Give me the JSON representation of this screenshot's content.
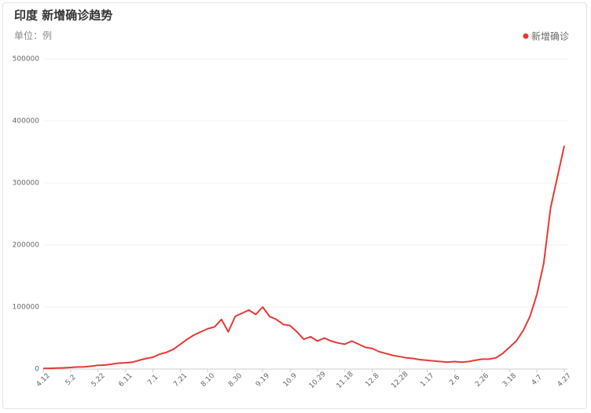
{
  "chart_data": {
    "type": "line",
    "title": "印度 新增确诊趋势",
    "subtitle": "单位：例",
    "categories": [
      "4.12",
      null,
      null,
      null,
      "5.2",
      null,
      null,
      null,
      "5.22",
      null,
      null,
      null,
      "6.11",
      null,
      null,
      null,
      "7.1",
      null,
      null,
      null,
      "7.21",
      null,
      null,
      null,
      "8.10",
      null,
      null,
      null,
      "8.30",
      null,
      null,
      null,
      "9.19",
      null,
      null,
      null,
      "10.9",
      null,
      null,
      null,
      "10.29",
      null,
      null,
      null,
      "11.18",
      null,
      null,
      null,
      "12.8",
      null,
      null,
      null,
      "12.28",
      null,
      null,
      null,
      "1.17",
      null,
      null,
      null,
      "2.6",
      null,
      null,
      null,
      "2.26",
      null,
      null,
      null,
      "3.18",
      null,
      null,
      null,
      "4.7",
      null,
      null,
      null,
      "4.27"
    ],
    "series": [
      {
        "name": "新增确诊",
        "color": "#e53935",
        "values": [
          900,
          1200,
          1500,
          1900,
          2500,
          3300,
          3600,
          4500,
          6000,
          6500,
          8000,
          9500,
          10000,
          11000,
          14000,
          17000,
          19000,
          24000,
          27000,
          32000,
          40000,
          48000,
          55000,
          60000,
          65000,
          68000,
          80000,
          60000,
          85000,
          90000,
          95000,
          88000,
          100000,
          85000,
          80000,
          72000,
          70000,
          60000,
          48000,
          52000,
          45000,
          50000,
          45000,
          42000,
          40000,
          45000,
          40000,
          35000,
          33000,
          28000,
          25000,
          22000,
          20000,
          18000,
          17000,
          15000,
          14000,
          13000,
          12000,
          11000,
          12000,
          11000,
          12000,
          14000,
          16000,
          16000,
          18000,
          25000,
          35000,
          45000,
          62000,
          85000,
          120000,
          170000,
          260000,
          310000,
          360000
        ]
      }
    ],
    "ylim": [
      0,
      500000
    ],
    "yticks": [
      0,
      100000,
      200000,
      300000,
      400000,
      500000
    ],
    "grid": true,
    "legend": "top-right"
  }
}
